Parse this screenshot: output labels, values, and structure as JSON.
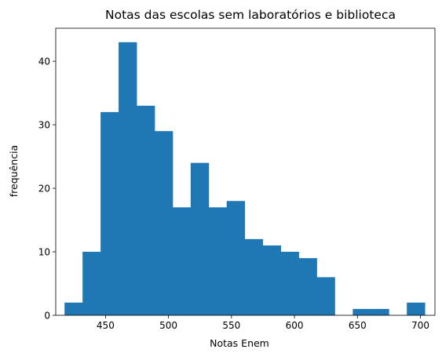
{
  "chart_data": {
    "type": "bar",
    "title": "Notas das escolas sem laboratórios e biblioteca",
    "xlabel": "Notas Enem",
    "ylabel": "frequência",
    "xlim": [
      410.5,
      711.5
    ],
    "ylim": [
      0,
      45.2
    ],
    "xticks": [
      450,
      500,
      550,
      600,
      650,
      700
    ],
    "yticks": [
      0,
      10,
      20,
      30,
      40
    ],
    "grid": false,
    "bar_color": "#1f77b4",
    "bin_edges": [
      417.5,
      431.8,
      446.1,
      460.4,
      474.7,
      489.0,
      503.3,
      517.6,
      531.9,
      546.2,
      560.5,
      574.8,
      589.1,
      603.4,
      617.7,
      632.0,
      646.3,
      660.6,
      674.9,
      689.2,
      703.5
    ],
    "counts": [
      2,
      10,
      32,
      43,
      33,
      29,
      17,
      24,
      17,
      18,
      12,
      11,
      10,
      9,
      6,
      0,
      1,
      1,
      0,
      2
    ]
  }
}
